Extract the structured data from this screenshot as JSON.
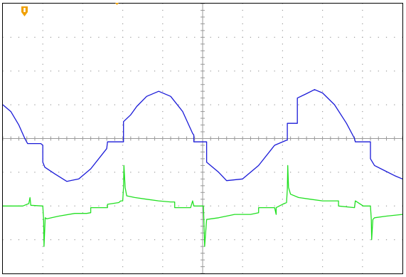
{
  "chart_data": {
    "type": "line",
    "title": "",
    "xlabel": "",
    "ylabel": "",
    "grid": true,
    "divisions": {
      "x": 10,
      "y": 8
    },
    "xlim": [
      0,
      10
    ],
    "ylim": [
      -4,
      4
    ],
    "trigger_marker_color": "#f0a000",
    "background": "#ffffff",
    "grid_color": "#9a9a9a",
    "frame_color": "#000000",
    "series": [
      {
        "color": "#1a1ad8",
        "x": [
          0.0,
          0.2,
          0.4,
          0.55,
          0.62,
          0.62,
          0.95,
          1.0,
          1.0,
          1.05,
          1.3,
          1.6,
          1.9,
          2.2,
          2.6,
          2.62,
          2.62,
          3.0,
          3.02,
          3.02,
          3.2,
          3.35,
          3.6,
          3.9,
          4.2,
          4.5,
          4.75,
          4.78,
          4.78,
          5.08,
          5.1,
          5.1,
          5.4,
          5.6,
          6.0,
          6.4,
          6.8,
          7.1,
          7.12,
          7.12,
          7.35,
          7.37,
          7.37,
          7.6,
          7.8,
          8.0,
          8.3,
          8.6,
          8.8,
          8.82,
          8.82,
          9.18,
          9.2,
          9.2,
          9.3,
          9.55,
          9.8,
          10.0
        ],
        "y": [
          1.0,
          0.8,
          0.4,
          0.0,
          -0.15,
          -0.15,
          -0.15,
          -0.2,
          -0.7,
          -0.85,
          -1.05,
          -1.27,
          -1.2,
          -0.9,
          -0.3,
          -0.1,
          -0.1,
          -0.1,
          -0.1,
          0.5,
          0.7,
          0.95,
          1.25,
          1.4,
          1.25,
          0.8,
          0.15,
          0.1,
          -0.1,
          -0.1,
          -0.1,
          -0.7,
          -1.0,
          -1.25,
          -1.2,
          -0.8,
          -0.2,
          -0.05,
          -0.05,
          0.45,
          0.45,
          0.45,
          1.2,
          1.33,
          1.45,
          1.35,
          1.0,
          0.45,
          0.0,
          -0.1,
          -0.1,
          -0.1,
          -0.1,
          -0.6,
          -0.8,
          -0.95,
          -1.1,
          -1.2
        ]
      },
      {
        "color": "#22e022",
        "x": [
          0.0,
          0.5,
          0.65,
          0.68,
          0.7,
          1.0,
          1.02,
          1.03,
          1.06,
          1.1,
          1.4,
          1.8,
          2.1,
          2.2,
          2.2,
          2.6,
          2.62,
          2.62,
          2.9,
          2.95,
          3.0,
          3.02,
          3.03,
          3.06,
          3.1,
          3.3,
          3.6,
          3.9,
          4.2,
          4.3,
          4.3,
          4.7,
          4.75,
          4.78,
          5.02,
          5.03,
          5.05,
          5.1,
          5.4,
          5.8,
          6.2,
          6.4,
          6.4,
          6.8,
          6.84,
          6.84,
          7.0,
          7.1,
          7.12,
          7.13,
          7.15,
          7.2,
          7.4,
          7.7,
          8.0,
          8.3,
          8.4,
          8.4,
          8.8,
          8.82,
          9.02,
          9.2,
          9.22,
          9.23,
          9.26,
          9.3,
          9.6,
          10.0
        ],
        "y": [
          -2.0,
          -2.0,
          -1.93,
          -1.75,
          -1.98,
          -2.0,
          -2.4,
          -3.2,
          -2.35,
          -2.38,
          -2.3,
          -2.22,
          -2.22,
          -2.2,
          -2.05,
          -2.05,
          -2.05,
          -1.95,
          -1.9,
          -1.85,
          -1.85,
          -1.45,
          -0.8,
          -1.45,
          -1.7,
          -1.75,
          -1.8,
          -1.85,
          -1.88,
          -1.88,
          -2.05,
          -2.05,
          -1.85,
          -2.0,
          -2.0,
          -2.4,
          -3.2,
          -2.4,
          -2.35,
          -2.25,
          -2.25,
          -2.2,
          -2.05,
          -2.05,
          -2.25,
          -2.05,
          -1.95,
          -1.9,
          -1.5,
          -0.8,
          -1.45,
          -1.65,
          -1.75,
          -1.8,
          -1.85,
          -1.85,
          -1.85,
          -2.0,
          -2.05,
          -1.85,
          -2.0,
          -2.0,
          -2.4,
          -3.0,
          -2.4,
          -2.35,
          -2.3,
          -2.25
        ]
      }
    ]
  }
}
